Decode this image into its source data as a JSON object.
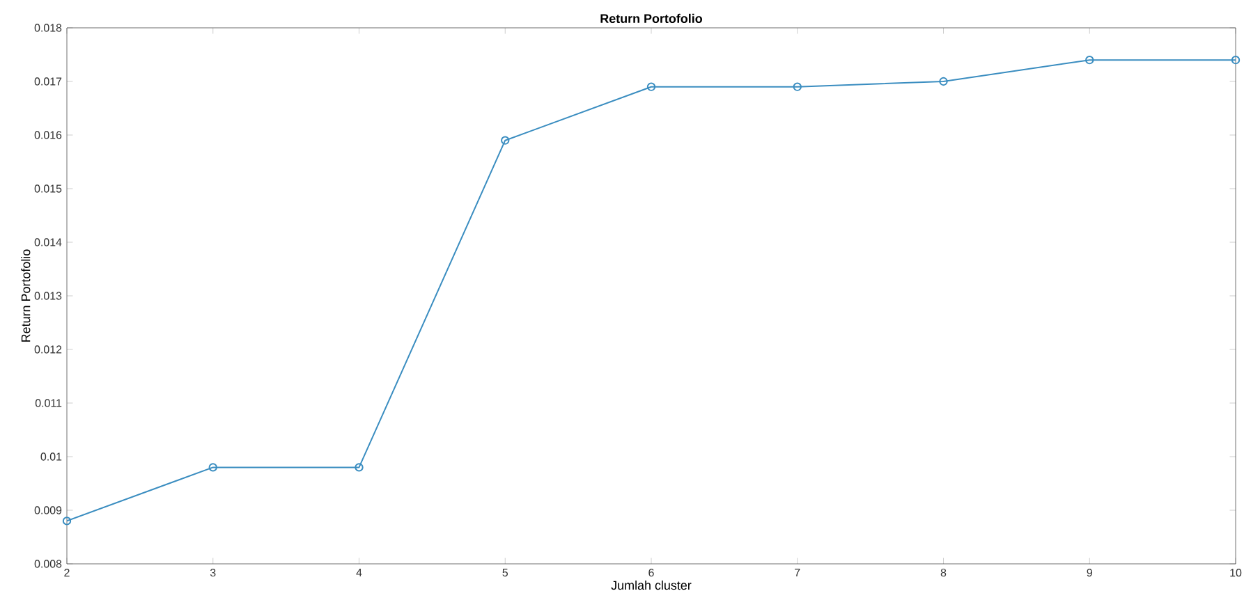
{
  "chart_data": {
    "type": "line",
    "title": "Return Portofolio",
    "xlabel": "Jumlah cluster",
    "ylabel": "Return Portofolio",
    "x": [
      2,
      3,
      4,
      5,
      6,
      7,
      8,
      9,
      10
    ],
    "series": [
      {
        "color": "#3a8dc0",
        "values": [
          0.0088,
          0.0098,
          0.0098,
          0.0159,
          0.0169,
          0.0169,
          0.017,
          0.0174,
          0.0174
        ]
      }
    ],
    "xlim": [
      2,
      10
    ],
    "xticks": [
      2,
      3,
      4,
      5,
      6,
      7,
      8,
      9,
      10
    ],
    "ylim": [
      0.008,
      0.018
    ],
    "yticks": [
      0.008,
      0.009,
      0.01,
      0.011,
      0.012,
      0.013,
      0.014,
      0.015,
      0.016,
      0.017,
      0.018
    ],
    "marker": "circle",
    "line_style": "solid",
    "grid": false
  }
}
